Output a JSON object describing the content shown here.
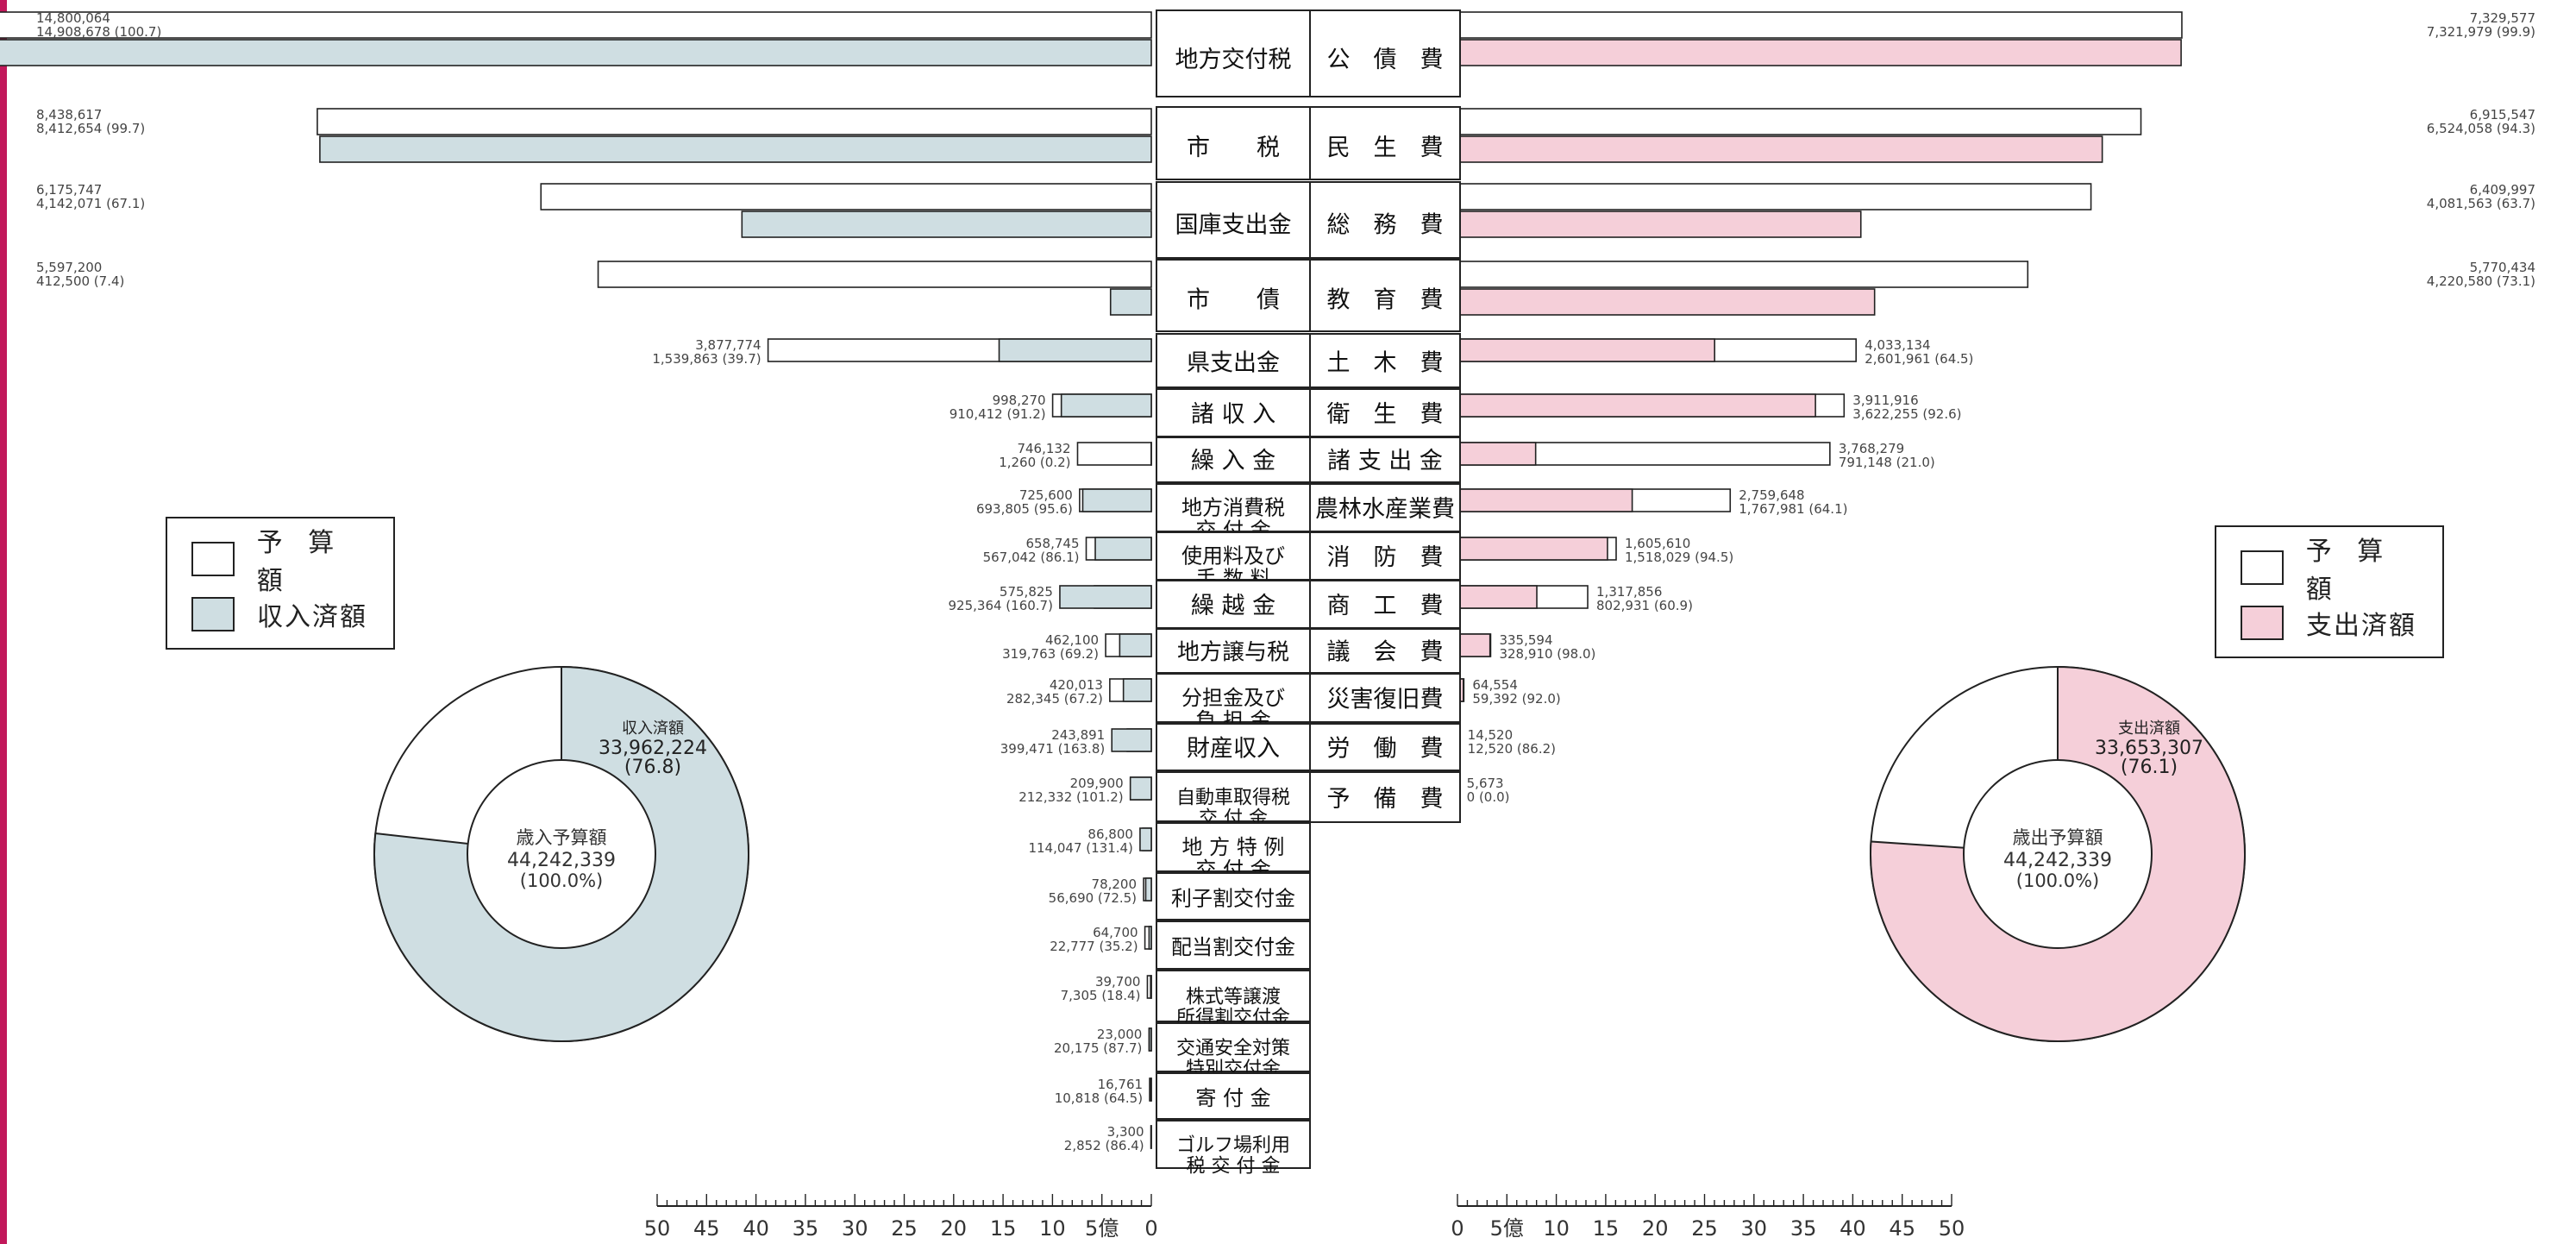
{
  "colors": {
    "accent_left": "#cfdee2",
    "accent_right": "#f5cfd9",
    "budget_fill": "#ffffff",
    "edge": "#222222",
    "side_strip": "#c2185b"
  },
  "legend_left": {
    "items": [
      "予 算 額",
      "収入済額"
    ]
  },
  "legend_right": {
    "items": [
      "予 算 額",
      "支出済額"
    ]
  },
  "donut_left": {
    "outer_label": "収入済額",
    "outer_value": "33,962,224",
    "outer_pct": "(76.8)",
    "center_title": "歳入予算額",
    "center_value": "44,242,339",
    "center_pct": "(100.0%)"
  },
  "donut_right": {
    "outer_label": "支出済額",
    "outer_value": "33,653,307",
    "outer_pct": "(76.1)",
    "center_title": "歳出予算額",
    "center_value": "44,242,339",
    "center_pct": "(100.0%)"
  },
  "chart_data": [
    {
      "type": "bar",
      "series": [
        {
          "name": "予 算 額"
        },
        {
          "name": "収入済額"
        }
      ],
      "xlim": [
        0,
        50
      ],
      "axis_ticks": [
        "50",
        "45",
        "40",
        "35",
        "30",
        "25",
        "20",
        "15",
        "10",
        "5億",
        "0"
      ],
      "categories": [
        {
          "label": "地方交付税",
          "budget": 14800064,
          "actual": 14908678,
          "v1": "14,800,064",
          "v2": "14,908,678 (100.7)"
        },
        {
          "label": "市　　税",
          "budget": 8438617,
          "actual": 8412654,
          "v1": "8,438,617",
          "v2": "8,412,654 (99.7)"
        },
        {
          "label": "国庫支出金",
          "budget": 6175747,
          "actual": 4142071,
          "v1": "6,175,747",
          "v2": "4,142,071 (67.1)"
        },
        {
          "label": "市　　債",
          "budget": 5597200,
          "actual": 412500,
          "v1": "5,597,200",
          "v2": "412,500 (7.4)"
        },
        {
          "label": "県支出金",
          "budget": 3877774,
          "actual": 1539863,
          "v1": "3,877,774",
          "v2": "1,539,863 (39.7)"
        },
        {
          "label": "諸 収 入",
          "budget": 998270,
          "actual": 910412,
          "v1": "998,270",
          "v2": "910,412 (91.2)"
        },
        {
          "label": "繰 入 金",
          "budget": 746132,
          "actual": 1260,
          "v1": "746,132",
          "v2": "1,260 (0.2)"
        },
        {
          "label": "地方消費税\n交 付 金",
          "budget": 725600,
          "actual": 693805,
          "v1": "725,600",
          "v2": "693,805 (95.6)"
        },
        {
          "label": "使用料及び\n手 数 料",
          "budget": 658745,
          "actual": 567042,
          "v1": "658,745",
          "v2": "567,042 (86.1)"
        },
        {
          "label": "繰 越 金",
          "budget": 575825,
          "actual": 925364,
          "v1": "575,825",
          "v2": "925,364 (160.7)"
        },
        {
          "label": "地方譲与税",
          "budget": 462100,
          "actual": 319763,
          "v1": "462,100",
          "v2": "319,763 (69.2)"
        },
        {
          "label": "分担金及び\n負 担 金",
          "budget": 420013,
          "actual": 282345,
          "v1": "420,013",
          "v2": "282,345 (67.2)"
        },
        {
          "label": "財産収入",
          "budget": 243891,
          "actual": 399471,
          "v1": "243,891",
          "v2": "399,471 (163.8)"
        },
        {
          "label": "自動車取得税\n交 付 金",
          "budget": 209900,
          "actual": 212332,
          "v1": "209,900",
          "v2": "212,332 (101.2)"
        },
        {
          "label": "地 方 特 例\n交 付 金",
          "budget": 86800,
          "actual": 114047,
          "v1": "86,800",
          "v2": "114,047 (131.4)"
        },
        {
          "label": "利子割交付金",
          "budget": 78200,
          "actual": 56690,
          "v1": "78,200",
          "v2": "56,690 (72.5)"
        },
        {
          "label": "配当割交付金",
          "budget": 64700,
          "actual": 22777,
          "v1": "64,700",
          "v2": "22,777 (35.2)"
        },
        {
          "label": "株式等譲渡\n所得割交付金",
          "budget": 39700,
          "actual": 7305,
          "v1": "39,700",
          "v2": "7,305 (18.4)"
        },
        {
          "label": "交通安全対策\n特別交付金",
          "budget": 23000,
          "actual": 20175,
          "v1": "23,000",
          "v2": "20,175 (87.7)"
        },
        {
          "label": "寄 付 金",
          "budget": 16761,
          "actual": 10818,
          "v1": "16,761",
          "v2": "10,818 (64.5)"
        },
        {
          "label": "ゴルフ場利用\n税 交 付 金",
          "budget": 3300,
          "actual": 2852,
          "v1": "3,300",
          "v2": "2,852 (86.4)"
        }
      ]
    },
    {
      "type": "bar",
      "series": [
        {
          "name": "予 算 額"
        },
        {
          "name": "支出済額"
        }
      ],
      "xlim": [
        0,
        50
      ],
      "axis_ticks": [
        "0",
        "5億",
        "10",
        "15",
        "20",
        "25",
        "30",
        "35",
        "40",
        "45",
        "50"
      ],
      "categories": [
        {
          "label": "公　債　費",
          "budget": 7329577,
          "actual": 7321979,
          "v1": "7,329,577",
          "v2": "7,321,979 (99.9)"
        },
        {
          "label": "民　生　費",
          "budget": 6915547,
          "actual": 6524058,
          "v1": "6,915,547",
          "v2": "6,524,058 (94.3)"
        },
        {
          "label": "総　務　費",
          "budget": 6409997,
          "actual": 4081563,
          "v1": "6,409,997",
          "v2": "4,081,563 (63.7)"
        },
        {
          "label": "教　育　費",
          "budget": 5770434,
          "actual": 4220580,
          "v1": "5,770,434",
          "v2": "4,220,580 (73.1)"
        },
        {
          "label": "土　木　費",
          "budget": 4033134,
          "actual": 2601961,
          "v1": "4,033,134",
          "v2": "2,601,961 (64.5)"
        },
        {
          "label": "衛　生　費",
          "budget": 3911916,
          "actual": 3622255,
          "v1": "3,911,916",
          "v2": "3,622,255 (92.6)"
        },
        {
          "label": "諸 支 出 金",
          "budget": 3768279,
          "actual": 791148,
          "v1": "3,768,279",
          "v2": "791,148 (21.0)"
        },
        {
          "label": "農林水産業費",
          "budget": 2759648,
          "actual": 1767981,
          "v1": "2,759,648",
          "v2": "1,767,981 (64.1)"
        },
        {
          "label": "消　防　費",
          "budget": 1605610,
          "actual": 1518029,
          "v1": "1,605,610",
          "v2": "1,518,029 (94.5)"
        },
        {
          "label": "商　工　費",
          "budget": 1317856,
          "actual": 802931,
          "v1": "1,317,856",
          "v2": "802,931 (60.9)"
        },
        {
          "label": "議　会　費",
          "budget": 335594,
          "actual": 328910,
          "v1": "335,594",
          "v2": "328,910 (98.0)"
        },
        {
          "label": "災害復旧費",
          "budget": 64554,
          "actual": 59392,
          "v1": "64,554",
          "v2": "59,392 (92.0)"
        },
        {
          "label": "労　働　費",
          "budget": 14520,
          "actual": 12520,
          "v1": "14,520",
          "v2": "12,520 (86.2)"
        },
        {
          "label": "予　備　費",
          "budget": 5673,
          "actual": 0,
          "v1": "5,673",
          "v2": "0 (0.0)"
        }
      ]
    },
    {
      "type": "pie",
      "slices": [
        {
          "label": "収入済額",
          "value": 33962224
        },
        {
          "label": "",
          "value": 10280115
        }
      ]
    },
    {
      "type": "pie",
      "slices": [
        {
          "label": "支出済額",
          "value": 33653307
        },
        {
          "label": "",
          "value": 10589032
        }
      ]
    }
  ]
}
